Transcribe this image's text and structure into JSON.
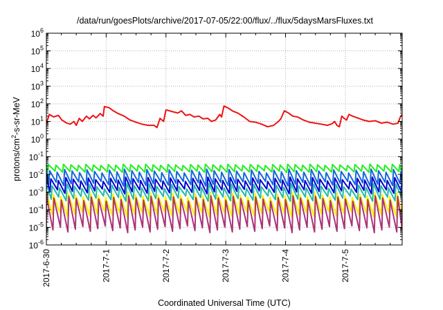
{
  "chart_data": {
    "type": "line",
    "title": "/data/run/goesPlots/archive/2017-07-05/22:00/flux/../flux/5daysMarsFluxes.txt",
    "xlabel": "Coordinated Universal Time (UTC)",
    "ylabel_main": "protons/cm",
    "ylabel_sup": "2",
    "ylabel_tail": "-s-sr-MeV",
    "yscale": "log",
    "ylim_exp": [
      -6,
      6
    ],
    "ytick_exponents": [
      6,
      5,
      4,
      3,
      2,
      1,
      0,
      -1,
      -2,
      -3,
      -4,
      -5,
      -6
    ],
    "ytick_base": "10",
    "xlim_days": [
      0,
      5.95
    ],
    "xticks": [
      {
        "day": 0,
        "label": "2017-6-30"
      },
      {
        "day": 1,
        "label": "2017-7-1"
      },
      {
        "day": 2,
        "label": "2017-7-2"
      },
      {
        "day": 3,
        "label": "2017-7-3"
      },
      {
        "day": 4,
        "label": "2017-7-4"
      },
      {
        "day": 5,
        "label": "2017-7-5"
      }
    ],
    "grid": true,
    "series": [
      {
        "color": "#ee1111",
        "points": [
          [
            0.0,
            8
          ],
          [
            0.05,
            25
          ],
          [
            0.12,
            18
          ],
          [
            0.2,
            22
          ],
          [
            0.26,
            12
          ],
          [
            0.34,
            8
          ],
          [
            0.4,
            7
          ],
          [
            0.46,
            10
          ],
          [
            0.5,
            6
          ],
          [
            0.55,
            15
          ],
          [
            0.6,
            10
          ],
          [
            0.67,
            20
          ],
          [
            0.72,
            14
          ],
          [
            0.78,
            22
          ],
          [
            0.83,
            16
          ],
          [
            0.9,
            28
          ],
          [
            0.95,
            20
          ],
          [
            0.97,
            70
          ],
          [
            1.05,
            60
          ],
          [
            1.12,
            40
          ],
          [
            1.2,
            28
          ],
          [
            1.3,
            20
          ],
          [
            1.4,
            12
          ],
          [
            1.5,
            9
          ],
          [
            1.6,
            7
          ],
          [
            1.7,
            6
          ],
          [
            1.8,
            6
          ],
          [
            1.85,
            4.5
          ],
          [
            1.9,
            15
          ],
          [
            1.96,
            10
          ],
          [
            2.0,
            45
          ],
          [
            2.06,
            40
          ],
          [
            2.12,
            35
          ],
          [
            2.2,
            30
          ],
          [
            2.26,
            40
          ],
          [
            2.33,
            22
          ],
          [
            2.4,
            25
          ],
          [
            2.47,
            18
          ],
          [
            2.55,
            20
          ],
          [
            2.62,
            14
          ],
          [
            2.7,
            15
          ],
          [
            2.76,
            10
          ],
          [
            2.83,
            12
          ],
          [
            2.9,
            25
          ],
          [
            2.93,
            18
          ],
          [
            2.97,
            75
          ],
          [
            3.05,
            55
          ],
          [
            3.12,
            38
          ],
          [
            3.2,
            30
          ],
          [
            3.3,
            18
          ],
          [
            3.4,
            10
          ],
          [
            3.5,
            9
          ],
          [
            3.6,
            7
          ],
          [
            3.7,
            5
          ],
          [
            3.8,
            6
          ],
          [
            3.88,
            10
          ],
          [
            3.92,
            14
          ],
          [
            3.98,
            40
          ],
          [
            4.05,
            30
          ],
          [
            4.12,
            20
          ],
          [
            4.2,
            18
          ],
          [
            4.3,
            12
          ],
          [
            4.4,
            9
          ],
          [
            4.5,
            8
          ],
          [
            4.6,
            7
          ],
          [
            4.7,
            6
          ],
          [
            4.78,
            7.5
          ],
          [
            4.82,
            10
          ],
          [
            4.86,
            6
          ],
          [
            4.9,
            5
          ],
          [
            4.94,
            20
          ],
          [
            4.98,
            15
          ],
          [
            5.02,
            12
          ],
          [
            5.06,
            25
          ],
          [
            5.12,
            20
          ],
          [
            5.2,
            16
          ],
          [
            5.3,
            12
          ],
          [
            5.4,
            10
          ],
          [
            5.5,
            11
          ],
          [
            5.6,
            8
          ],
          [
            5.7,
            9
          ],
          [
            5.8,
            7
          ],
          [
            5.88,
            8
          ],
          [
            5.92,
            18
          ],
          [
            5.95,
            25
          ]
        ]
      },
      {
        "color": "#22ee22",
        "sawtooth": {
          "period": 0.125,
          "phase": 0.02,
          "min": [
            0.013,
            0.016
          ],
          "max": [
            0.032,
            0.038
          ]
        }
      },
      {
        "color": "#1166dd",
        "sawtooth": {
          "period": 0.125,
          "phase": 0.04,
          "min": [
            0.0022,
            0.004
          ],
          "max": [
            0.012,
            0.02
          ]
        }
      },
      {
        "color": "#0000cc",
        "sawtooth": {
          "period": 0.125,
          "phase": 0.06,
          "min": [
            0.0008,
            0.0015
          ],
          "max": [
            0.004,
            0.007
          ]
        }
      },
      {
        "color": "#22bbaa",
        "sawtooth": {
          "period": 0.125,
          "phase": 0.08,
          "min": [
            0.0003,
            0.0006
          ],
          "max": [
            0.0015,
            0.003
          ]
        }
      },
      {
        "color": "#ffee00",
        "sawtooth": {
          "period": 0.125,
          "phase": 0.1,
          "min": [
            4e-05,
            8e-05
          ],
          "max": [
            0.0005,
            0.0009
          ]
        }
      },
      {
        "color": "#aa3377",
        "sawtooth": {
          "period": 0.125,
          "phase": 0.11,
          "min": [
            5e-06,
            1.2e-05
          ],
          "max": [
            0.0003,
            0.0006
          ]
        }
      }
    ]
  }
}
